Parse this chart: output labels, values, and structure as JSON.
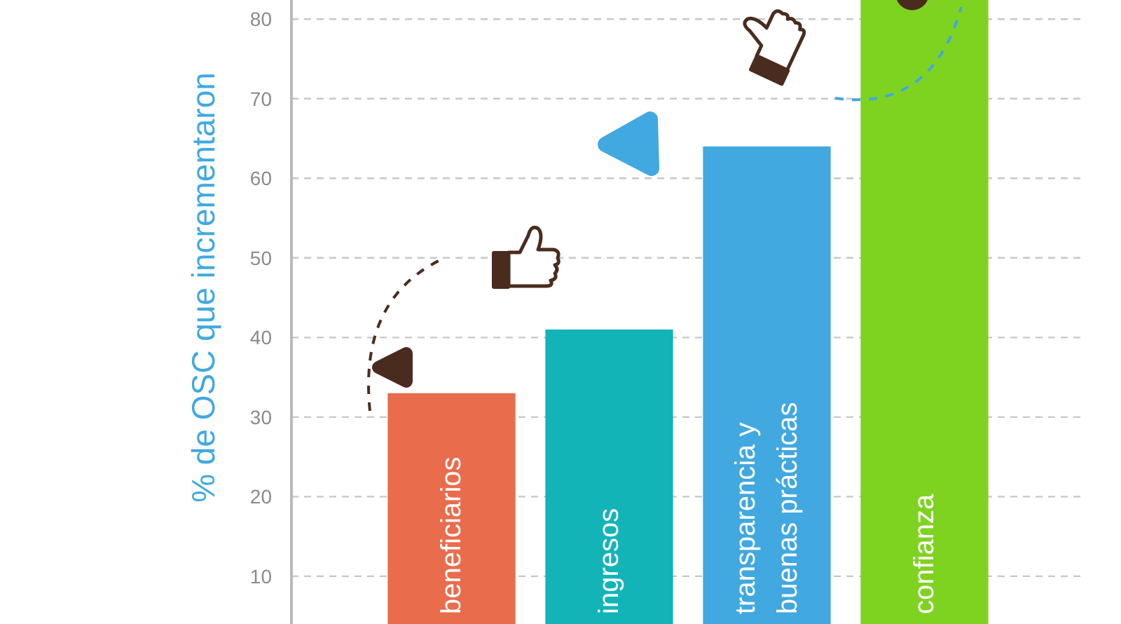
{
  "chart_data": {
    "type": "bar",
    "ylabel": "% de OSC que incrementaron",
    "categories": [
      "beneficiarios",
      "ingresos",
      "transparencia y buenas prácticas",
      "confianza"
    ],
    "values": [
      33,
      41,
      64,
      82.4
    ],
    "colors": [
      "#e96c4c",
      "#12b4b8",
      "#41a8e0",
      "#7ed321"
    ],
    "ylim": [
      4,
      82.4
    ],
    "yticks": [
      10,
      20,
      30,
      40,
      50,
      60,
      70,
      80
    ],
    "grid": "y"
  }
}
